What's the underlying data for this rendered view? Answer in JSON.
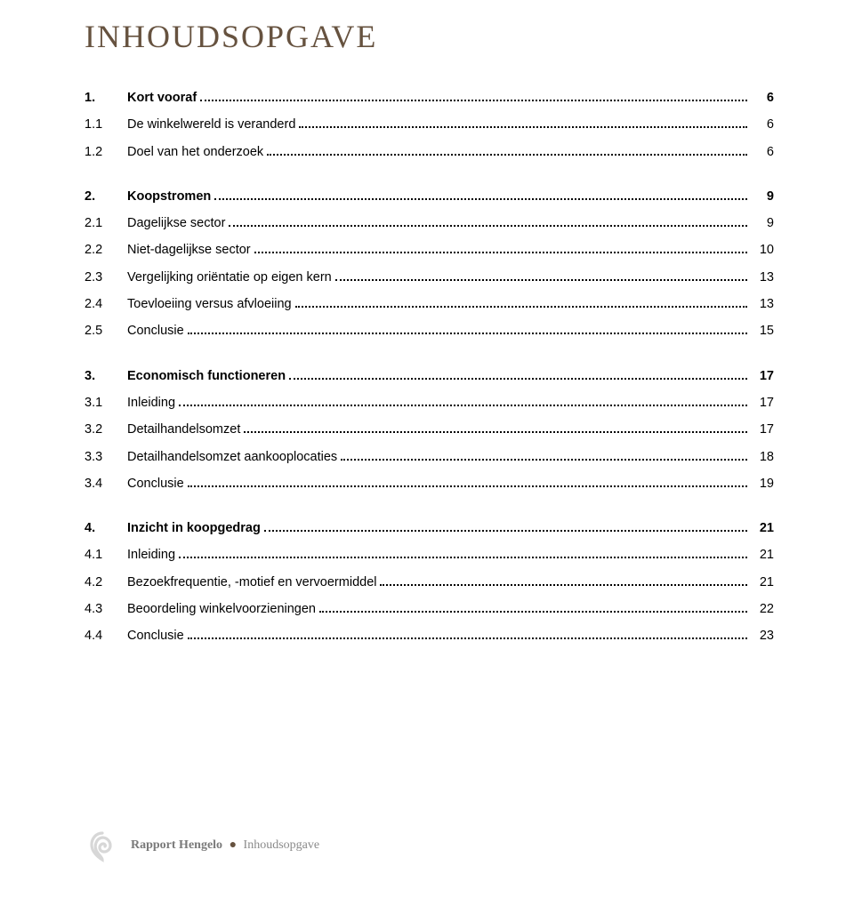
{
  "heading": "INHOUDSOPGAVE",
  "toc": [
    {
      "num": "1.",
      "label": "Kort vooraf",
      "page": "6",
      "sub": [
        {
          "num": "1.1",
          "label": "De winkelwereld is veranderd",
          "page": "6"
        },
        {
          "num": "1.2",
          "label": "Doel van het onderzoek",
          "page": "6"
        }
      ]
    },
    {
      "num": "2.",
      "label": "Koopstromen",
      "page": "9",
      "sub": [
        {
          "num": "2.1",
          "label": "Dagelijkse sector",
          "page": "9"
        },
        {
          "num": "2.2",
          "label": "Niet-dagelijkse sector",
          "page": "10"
        },
        {
          "num": "2.3",
          "label": "Vergelijking oriëntatie op eigen kern",
          "page": "13"
        },
        {
          "num": "2.4",
          "label": "Toevloeiing versus afvloeiing",
          "page": "13"
        },
        {
          "num": "2.5",
          "label": "Conclusie",
          "page": "15"
        }
      ]
    },
    {
      "num": "3.",
      "label": "Economisch functioneren",
      "page": "17",
      "sub": [
        {
          "num": "3.1",
          "label": "Inleiding",
          "page": "17"
        },
        {
          "num": "3.2",
          "label": "Detailhandelsomzet",
          "page": "17"
        },
        {
          "num": "3.3",
          "label": "Detailhandelsomzet aankooplocaties",
          "page": "18"
        },
        {
          "num": "3.4",
          "label": "Conclusie",
          "page": "19"
        }
      ]
    },
    {
      "num": "4.",
      "label": "Inzicht in koopgedrag",
      "page": "21",
      "sub": [
        {
          "num": "4.1",
          "label": "Inleiding",
          "page": "21"
        },
        {
          "num": "4.2",
          "label": "Bezoekfrequentie, -motief en vervoermiddel",
          "page": "21"
        },
        {
          "num": "4.3",
          "label": "Beoordeling winkelvoorzieningen",
          "page": "22"
        },
        {
          "num": "4.4",
          "label": "Conclusie",
          "page": "23"
        }
      ]
    }
  ],
  "footer": {
    "strong": "Rapport Hengelo",
    "light": "Inhoudsopgave"
  },
  "colors": {
    "heading": "#66523f",
    "text": "#000000",
    "footer_gray": "#8a8a8a",
    "footer_dot": "#66523f",
    "background": "#ffffff"
  },
  "typography": {
    "heading_family": "Georgia serif",
    "heading_size_pt": 27,
    "body_family": "Verdana sans-serif",
    "body_size_pt": 11,
    "footer_family": "Georgia serif",
    "footer_size_pt": 10.5
  }
}
